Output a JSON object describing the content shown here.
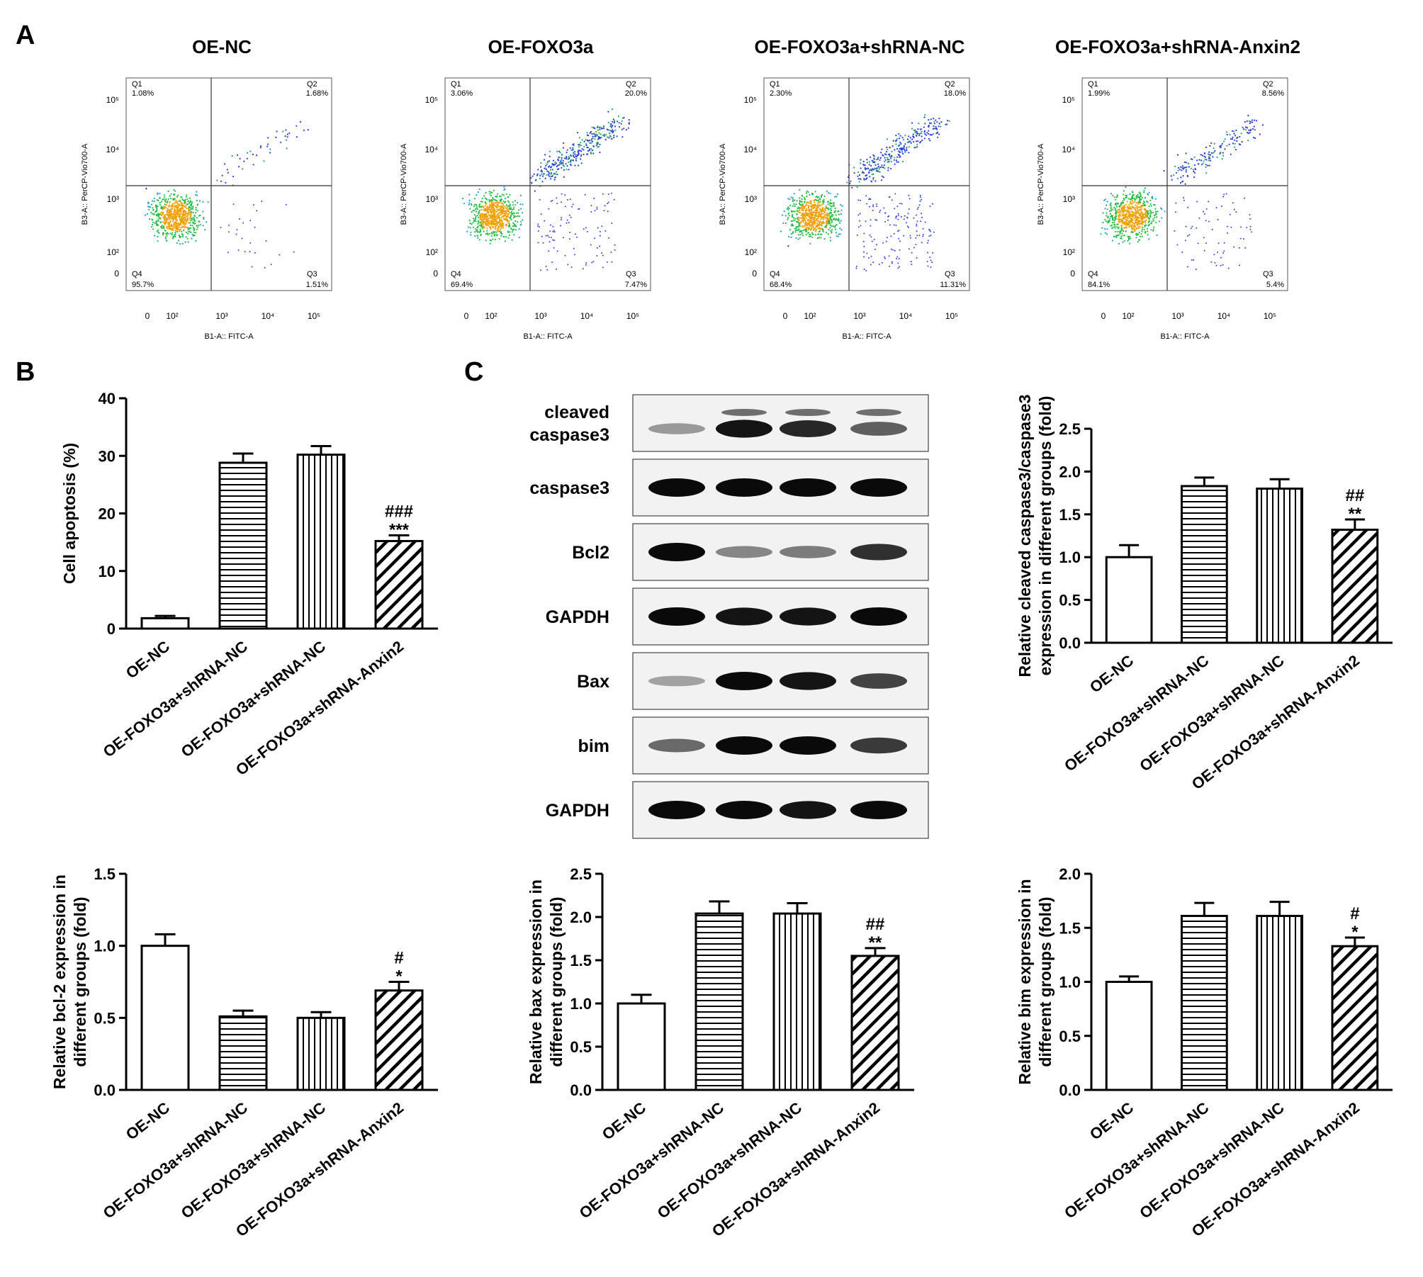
{
  "panels": {
    "A": "A",
    "B": "B",
    "C": "C"
  },
  "flow": {
    "x_label": "B1-A:: FITC-A",
    "y_label": "B3-A:: PerCP-Vio700-A",
    "quadrant_names": [
      "Q1",
      "Q2",
      "Q3",
      "Q4"
    ],
    "plots": [
      {
        "title": "OE-NC",
        "q1": "1.08%",
        "q2": "1.68%",
        "q3": "1.51%",
        "q4": "95.7%"
      },
      {
        "title": "OE-FOXO3a",
        "q1": "3.06%",
        "q2": "20.0%",
        "q3": "7.47%",
        "q4": "69.4%"
      },
      {
        "title": "OE-FOXO3a+shRNA-NC",
        "q1": "2.30%",
        "q2": "18.0%",
        "q3": "11.31%",
        "q4": "68.4%"
      },
      {
        "title": "OE-FOXO3a+shRNA-Anxin2",
        "q1": "1.99%",
        "q2": "8.56%",
        "q3": "5.4%",
        "q4": "84.1%"
      }
    ]
  },
  "western_blot": {
    "rows": [
      {
        "label": "cleaved\ncaspase3",
        "intensities": [
          0.25,
          0.95,
          0.85,
          0.55
        ]
      },
      {
        "label": "caspase3",
        "intensities": [
          1.0,
          1.0,
          1.0,
          1.0
        ]
      },
      {
        "label": "Bcl2",
        "intensities": [
          1.0,
          0.35,
          0.4,
          0.8
        ]
      },
      {
        "label": "GAPDH",
        "intensities": [
          1.0,
          0.95,
          0.95,
          1.0
        ]
      },
      {
        "label": "Bax",
        "intensities": [
          0.2,
          1.0,
          0.95,
          0.7
        ]
      },
      {
        "label": "bim",
        "intensities": [
          0.5,
          1.0,
          1.0,
          0.75
        ]
      },
      {
        "label": "GAPDH",
        "intensities": [
          1.0,
          1.0,
          0.95,
          1.0
        ]
      }
    ]
  },
  "chart_data": [
    {
      "type": "bar",
      "ylabel": "Cell apoptosis (%)",
      "categories": [
        "OE-NC",
        "OE-FOXO3a+shRNA-NC",
        "OE-FOXO3a+shRNA-NC",
        "OE-FOXO3a+shRNA-Anxin2"
      ],
      "values": [
        1.8,
        28.8,
        30.2,
        15.2
      ],
      "errors": [
        0.4,
        1.6,
        1.5,
        1.0
      ],
      "ylim": [
        0,
        40
      ],
      "yticks": [
        0,
        10,
        20,
        30,
        40
      ],
      "significance": [
        "",
        "",
        "",
        "###\n***"
      ],
      "patterns": [
        "none",
        "horizontal",
        "vertical",
        "diagonal"
      ]
    },
    {
      "type": "bar",
      "ylabel": "Relative cleaved caspase3/caspase3\nexpression in different groups (fold)",
      "categories": [
        "OE-NC",
        "OE-FOXO3a+shRNA-NC",
        "OE-FOXO3a+shRNA-NC",
        "OE-FOXO3a+shRNA-Anxin2"
      ],
      "values": [
        1.0,
        1.83,
        1.8,
        1.32
      ],
      "errors": [
        0.14,
        0.1,
        0.11,
        0.12
      ],
      "ylim": [
        0,
        2.5
      ],
      "yticks": [
        0.0,
        0.5,
        1.0,
        1.5,
        2.0,
        2.5
      ],
      "significance": [
        "",
        "",
        "",
        "##\n**"
      ],
      "patterns": [
        "none",
        "horizontal",
        "vertical",
        "diagonal"
      ]
    },
    {
      "type": "bar",
      "ylabel": "Relative bcl-2  expression in\ndifferent groups (fold)",
      "categories": [
        "OE-NC",
        "OE-FOXO3a+shRNA-NC",
        "OE-FOXO3a+shRNA-NC",
        "OE-FOXO3a+shRNA-Anxin2"
      ],
      "values": [
        1.0,
        0.51,
        0.5,
        0.69
      ],
      "errors": [
        0.08,
        0.04,
        0.04,
        0.06
      ],
      "ylim": [
        0,
        1.5
      ],
      "yticks": [
        0.0,
        0.5,
        1.0,
        1.5
      ],
      "significance": [
        "",
        "",
        "",
        "#\n*"
      ],
      "patterns": [
        "none",
        "horizontal",
        "vertical",
        "diagonal"
      ]
    },
    {
      "type": "bar",
      "ylabel": "Relative bax expression in\ndifferent groups (fold)",
      "categories": [
        "OE-NC",
        "OE-FOXO3a+shRNA-NC",
        "OE-FOXO3a+shRNA-NC",
        "OE-FOXO3a+shRNA-Anxin2"
      ],
      "values": [
        1.0,
        2.04,
        2.04,
        1.55
      ],
      "errors": [
        0.1,
        0.14,
        0.12,
        0.09
      ],
      "ylim": [
        0,
        2.5
      ],
      "yticks": [
        0.0,
        0.5,
        1.0,
        1.5,
        2.0,
        2.5
      ],
      "significance": [
        "",
        "",
        "",
        "##\n**"
      ],
      "patterns": [
        "none",
        "horizontal",
        "vertical",
        "diagonal"
      ]
    },
    {
      "type": "bar",
      "ylabel": "Relative bim expression in\ndifferent groups (fold)",
      "categories": [
        "OE-NC",
        "OE-FOXO3a+shRNA-NC",
        "OE-FOXO3a+shRNA-NC",
        "OE-FOXO3a+shRNA-Anxin2"
      ],
      "values": [
        1.0,
        1.61,
        1.61,
        1.33
      ],
      "errors": [
        0.05,
        0.12,
        0.13,
        0.08
      ],
      "ylim": [
        0,
        2.0
      ],
      "yticks": [
        0.0,
        0.5,
        1.0,
        1.5,
        2.0
      ],
      "significance": [
        "",
        "",
        "",
        "#\n*"
      ],
      "patterns": [
        "none",
        "horizontal",
        "vertical",
        "diagonal"
      ]
    }
  ]
}
